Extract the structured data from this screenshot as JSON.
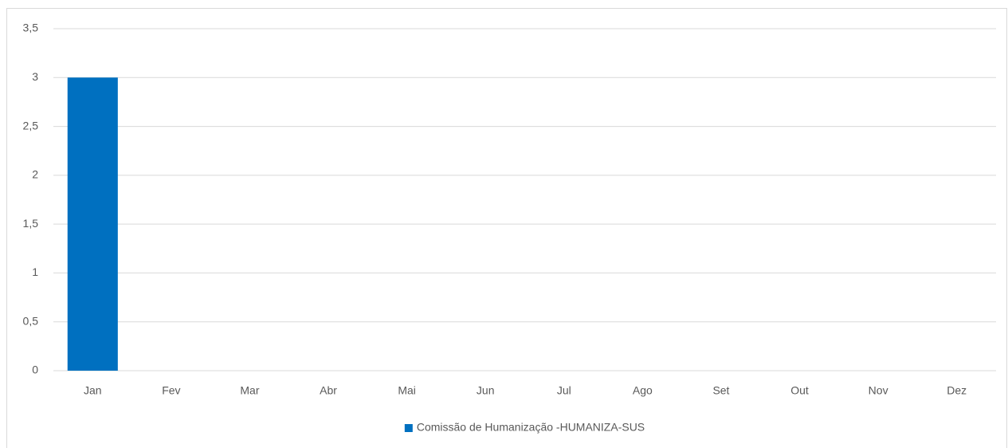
{
  "chart_data": {
    "type": "bar",
    "categories": [
      "Jan",
      "Fev",
      "Mar",
      "Abr",
      "Mai",
      "Jun",
      "Jul",
      "Ago",
      "Set",
      "Out",
      "Nov",
      "Dez"
    ],
    "series": [
      {
        "name": "Comissão de Humanização -HUMANIZA-SUS",
        "color": "#0070c0",
        "values": [
          3,
          0,
          0,
          0,
          0,
          0,
          0,
          0,
          0,
          0,
          0,
          0
        ]
      }
    ],
    "ylim": [
      0,
      3.5
    ],
    "yticks": [
      0,
      {
        "value": 0.5,
        "label": "0,5"
      },
      1,
      {
        "value": 1.5,
        "label": "1,5"
      },
      2,
      {
        "value": 2.5,
        "label": "2,5"
      },
      3,
      {
        "value": 3.5,
        "label": "3,5"
      }
    ],
    "grid": true,
    "legend": "bottom"
  }
}
